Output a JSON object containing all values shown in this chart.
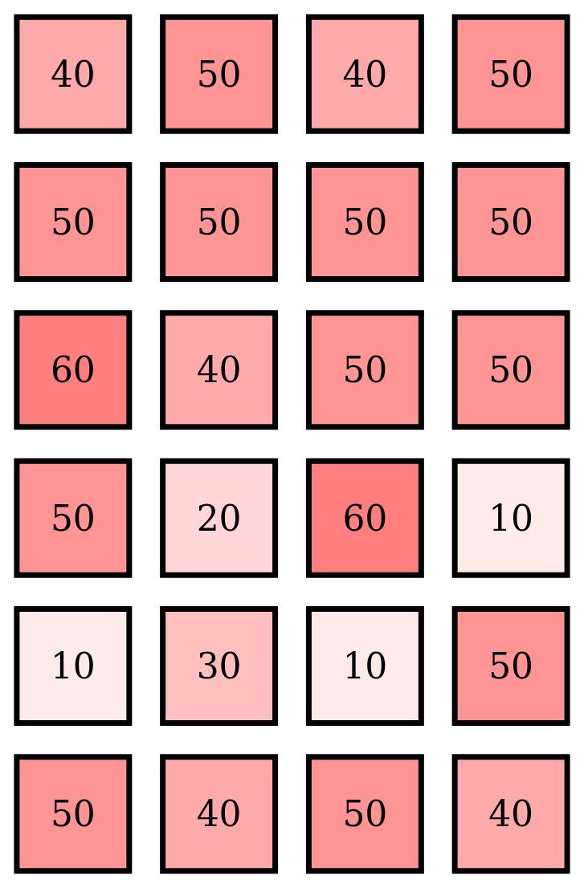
{
  "chart_data": {
    "type": "heatmap",
    "categories": [
      null,
      null,
      null,
      null
    ],
    "y_categories": [
      null,
      null,
      null,
      null,
      null,
      null
    ],
    "cells": [
      [
        40,
        50,
        40,
        50
      ],
      [
        50,
        50,
        50,
        50
      ],
      [
        60,
        40,
        50,
        50
      ],
      [
        50,
        20,
        60,
        10
      ],
      [
        10,
        30,
        10,
        50
      ],
      [
        50,
        40,
        50,
        40
      ]
    ],
    "colors": [
      "#ffeaea",
      "#ff7f7f"
    ],
    "data_labels": true
  }
}
